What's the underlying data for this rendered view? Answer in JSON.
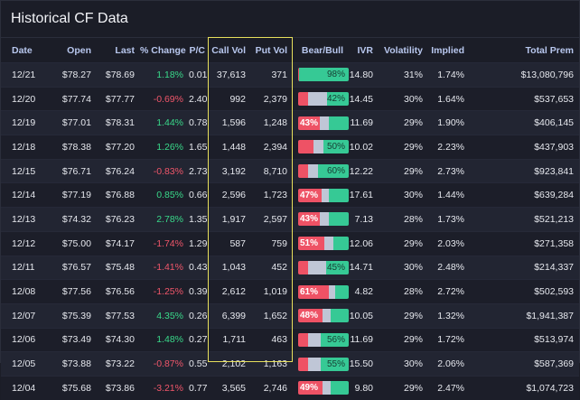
{
  "title": "Historical CF Data",
  "columns": [
    "Date",
    "Open",
    "Last",
    "% Change",
    "P/C",
    "Call Vol",
    "Put Vol",
    "Bear/Bull",
    "IVR",
    "Volatility",
    "Implied",
    "Total Prem"
  ],
  "colors": {
    "positive": "#39d98a",
    "negative": "#f0566a",
    "bear": "#ee5265",
    "bull": "#36c995",
    "neutral": "#bfc6d6",
    "highlight": "#e7df5c"
  },
  "rows": [
    {
      "date": "12/21",
      "open": "$78.27",
      "last": "$78.69",
      "change": "1.18%",
      "dir": "up",
      "pc": "0.01",
      "call": "37,613",
      "put": "371",
      "bear": 0.01,
      "bull": 0.98,
      "label": "98%",
      "side": "bull",
      "ivr": "14.80",
      "vol": "31%",
      "implied": "1.74%",
      "prem": "$13,080,796"
    },
    {
      "date": "12/20",
      "open": "$77.74",
      "last": "$77.77",
      "change": "-0.69%",
      "dir": "down",
      "pc": "2.40",
      "call": "992",
      "put": "2,379",
      "bear": 0.2,
      "bull": 0.42,
      "label": "42%",
      "side": "bull",
      "ivr": "14.45",
      "vol": "30%",
      "implied": "1.64%",
      "prem": "$537,653"
    },
    {
      "date": "12/19",
      "open": "$77.01",
      "last": "$78.31",
      "change": "1.44%",
      "dir": "up",
      "pc": "0.78",
      "call": "1,596",
      "put": "1,248",
      "bear": 0.43,
      "bull": 0.4,
      "label": "43%",
      "side": "bear",
      "ivr": "11.69",
      "vol": "29%",
      "implied": "1.90%",
      "prem": "$406,145"
    },
    {
      "date": "12/18",
      "open": "$78.38",
      "last": "$77.20",
      "change": "1.26%",
      "dir": "up",
      "pc": "1.65",
      "call": "1,448",
      "put": "2,394",
      "bear": 0.31,
      "bull": 0.5,
      "label": "50%",
      "side": "bull",
      "ivr": "10.02",
      "vol": "29%",
      "implied": "2.23%",
      "prem": "$437,903"
    },
    {
      "date": "12/15",
      "open": "$76.71",
      "last": "$76.24",
      "change": "-0.83%",
      "dir": "down",
      "pc": "2.73",
      "call": "3,192",
      "put": "8,710",
      "bear": 0.2,
      "bull": 0.6,
      "label": "60%",
      "side": "bull",
      "ivr": "12.22",
      "vol": "29%",
      "implied": "2.73%",
      "prem": "$923,841"
    },
    {
      "date": "12/14",
      "open": "$77.19",
      "last": "$76.88",
      "change": "0.85%",
      "dir": "up",
      "pc": "0.66",
      "call": "2,596",
      "put": "1,723",
      "bear": 0.47,
      "bull": 0.4,
      "label": "47%",
      "side": "bear",
      "ivr": "17.61",
      "vol": "30%",
      "implied": "1.44%",
      "prem": "$639,284"
    },
    {
      "date": "12/13",
      "open": "$74.32",
      "last": "$76.23",
      "change": "2.78%",
      "dir": "up",
      "pc": "1.35",
      "call": "1,917",
      "put": "2,597",
      "bear": 0.43,
      "bull": 0.4,
      "label": "43%",
      "side": "bear",
      "ivr": "7.13",
      "vol": "28%",
      "implied": "1.73%",
      "prem": "$521,213"
    },
    {
      "date": "12/12",
      "open": "$75.00",
      "last": "$74.17",
      "change": "-1.74%",
      "dir": "down",
      "pc": "1.29",
      "call": "587",
      "put": "759",
      "bear": 0.51,
      "bull": 0.3,
      "label": "51%",
      "side": "bear",
      "ivr": "12.06",
      "vol": "29%",
      "implied": "2.03%",
      "prem": "$271,358"
    },
    {
      "date": "12/11",
      "open": "$76.57",
      "last": "$75.48",
      "change": "-1.41%",
      "dir": "down",
      "pc": "0.43",
      "call": "1,043",
      "put": "452",
      "bear": 0.2,
      "bull": 0.45,
      "label": "45%",
      "side": "bull",
      "ivr": "14.71",
      "vol": "30%",
      "implied": "2.48%",
      "prem": "$214,337"
    },
    {
      "date": "12/08",
      "open": "$77.56",
      "last": "$76.56",
      "change": "-1.25%",
      "dir": "down",
      "pc": "0.39",
      "call": "2,612",
      "put": "1,019",
      "bear": 0.61,
      "bull": 0.26,
      "label": "61%",
      "side": "bear",
      "ivr": "4.82",
      "vol": "28%",
      "implied": "2.72%",
      "prem": "$502,593"
    },
    {
      "date": "12/07",
      "open": "$75.39",
      "last": "$77.53",
      "change": "4.35%",
      "dir": "up",
      "pc": "0.26",
      "call": "6,399",
      "put": "1,652",
      "bear": 0.48,
      "bull": 0.36,
      "label": "48%",
      "side": "bear",
      "ivr": "10.05",
      "vol": "29%",
      "implied": "1.32%",
      "prem": "$1,941,387"
    },
    {
      "date": "12/06",
      "open": "$73.49",
      "last": "$74.30",
      "change": "1.48%",
      "dir": "up",
      "pc": "0.27",
      "call": "1,711",
      "put": "463",
      "bear": 0.2,
      "bull": 0.56,
      "label": "56%",
      "side": "bull",
      "ivr": "11.69",
      "vol": "29%",
      "implied": "1.72%",
      "prem": "$513,974"
    },
    {
      "date": "12/05",
      "open": "$73.88",
      "last": "$73.22",
      "change": "-0.87%",
      "dir": "down",
      "pc": "0.55",
      "call": "2,102",
      "put": "1,163",
      "bear": 0.2,
      "bull": 0.55,
      "label": "55%",
      "side": "bull",
      "ivr": "15.50",
      "vol": "30%",
      "implied": "2.06%",
      "prem": "$587,369"
    },
    {
      "date": "12/04",
      "open": "$75.68",
      "last": "$73.86",
      "change": "-3.21%",
      "dir": "down",
      "pc": "0.77",
      "call": "3,565",
      "put": "2,746",
      "bear": 0.49,
      "bull": 0.36,
      "label": "49%",
      "side": "bear",
      "ivr": "9.80",
      "vol": "29%",
      "implied": "2.47%",
      "prem": "$1,074,723"
    }
  ]
}
